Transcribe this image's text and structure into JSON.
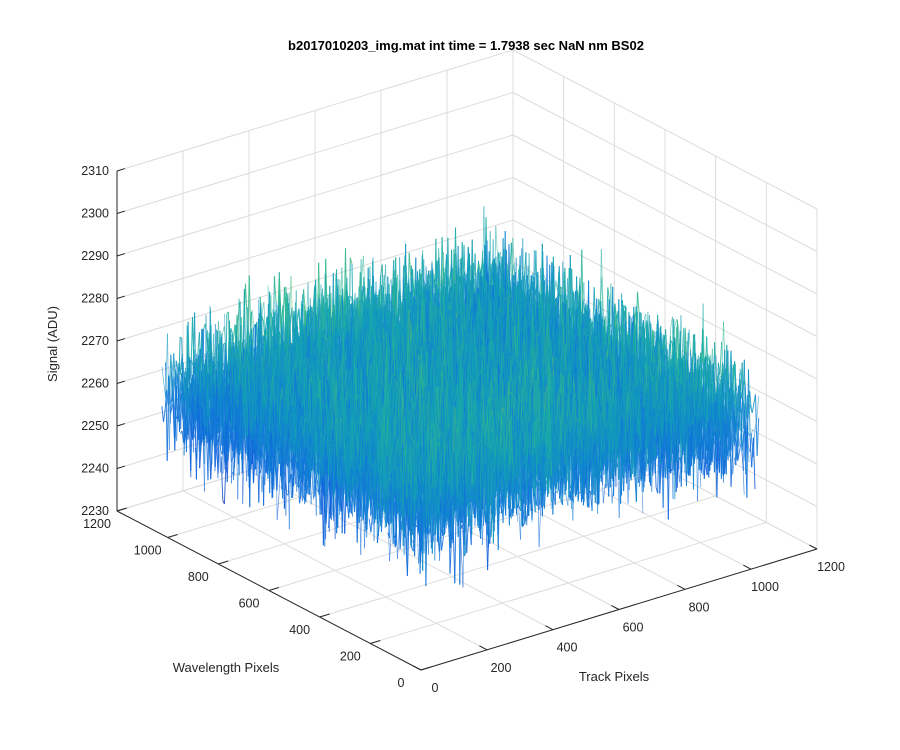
{
  "chart_data": {
    "type": "surface",
    "title": "b2017010203_img.mat int time = 1.7938 sec  NaN nm BS02",
    "xlabel": "Track Pixels",
    "ylabel": "Wavelength Pixels",
    "zlabel": "Signal (ADU)",
    "xlim": [
      0,
      1200
    ],
    "ylim": [
      0,
      1200
    ],
    "zlim": [
      2230,
      2310
    ],
    "x_ticks": [
      "0",
      "200",
      "400",
      "600",
      "800",
      "1000",
      "1200"
    ],
    "y_ticks": [
      "0",
      "200",
      "400",
      "600",
      "800",
      "1000",
      "1200"
    ],
    "z_ticks": [
      "2230",
      "2240",
      "2250",
      "2260",
      "2270",
      "2280",
      "2290",
      "2300",
      "2310"
    ],
    "grid": true,
    "colormap": "parula",
    "surface_extent": {
      "x": [
        1,
        1024
      ],
      "y": [
        1,
        1024
      ]
    },
    "signal_mean": 2265,
    "signal_noise_range": [
      2232,
      2305
    ],
    "colors": {
      "low": "#0b6fd6",
      "mid": "#17b6a6",
      "high": "#e9c23a"
    }
  }
}
